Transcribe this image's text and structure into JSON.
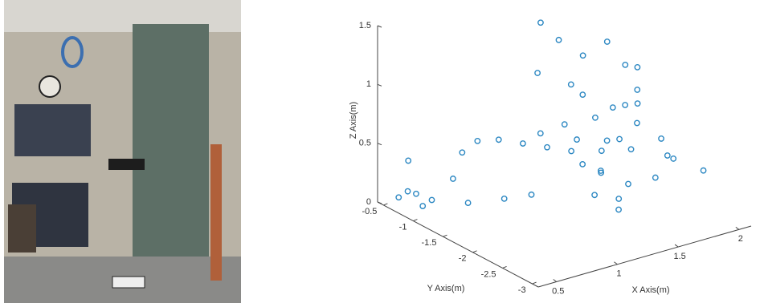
{
  "chart_data": {
    "type": "scatter3d",
    "xlabel": "X Axis(m)",
    "ylabel": "Y Axis(m)",
    "zlabel": "Z Axis(m)",
    "color": "#2b87c2",
    "xlim": [
      0.35,
      2.1
    ],
    "ylim": [
      -3.1,
      -0.4
    ],
    "zlim": [
      0,
      1.5
    ],
    "xticks": [
      0.5,
      1,
      1.5,
      2
    ],
    "yticks": [
      -0.5,
      -1,
      -1.5,
      -2,
      -2.5,
      -3
    ],
    "zticks": [
      0,
      0.5,
      1,
      1.5
    ],
    "x": [
      0.45,
      0.5,
      0.48,
      0.52,
      0.6,
      0.75,
      0.85,
      1.0,
      1.15,
      1.3,
      1.45,
      1.6,
      1.8,
      1.95,
      2.05,
      0.55,
      0.8,
      1.0,
      1.15,
      1.2,
      1.2,
      1.25,
      1.35,
      1.5,
      1.65,
      1.75,
      1.7,
      1.6,
      1.5,
      1.4,
      1.55,
      1.7,
      1.8,
      1.85,
      1.9,
      1.8,
      1.65,
      1.5,
      1.45,
      1.6,
      1.75,
      1.9,
      1.95,
      1.85,
      1.7,
      1.55,
      1.4,
      1.3,
      1.35,
      1.5
    ],
    "y": [
      -0.55,
      -0.6,
      -0.65,
      -0.7,
      -0.8,
      -0.85,
      -0.8,
      -0.75,
      -0.8,
      -0.9,
      -1.0,
      -1.1,
      -1.2,
      -2.1,
      -2.4,
      -0.75,
      -1.0,
      -1.2,
      -1.35,
      -1.4,
      -1.35,
      -1.3,
      -1.4,
      -1.5,
      -1.6,
      -1.7,
      -1.8,
      -1.7,
      -1.8,
      -1.9,
      -2.0,
      -1.9,
      -1.8,
      -1.7,
      -1.6,
      -1.5,
      -1.4,
      -1.3,
      -1.5,
      -1.6,
      -1.75,
      -1.9,
      -2.0,
      -2.1,
      -2.0,
      -1.9,
      -1.7,
      -1.6,
      -1.8,
      -2.1
    ],
    "z": [
      0.05,
      0.1,
      0.38,
      0.1,
      0.05,
      0.2,
      0.38,
      0.42,
      0.4,
      0.35,
      0.3,
      0.25,
      0.22,
      0.35,
      0.3,
      0.0,
      0.02,
      0.05,
      0.08,
      0.6,
      1.1,
      1.5,
      1.35,
      1.2,
      1.3,
      1.1,
      0.8,
      0.5,
      0.3,
      0.15,
      0.1,
      0.45,
      0.9,
      1.05,
      0.7,
      0.4,
      0.6,
      0.9,
      0.5,
      0.2,
      0.1,
      0.15,
      0.35,
      0.55,
      0.7,
      0.85,
      0.95,
      0.7,
      0.4,
      0.05
    ]
  }
}
